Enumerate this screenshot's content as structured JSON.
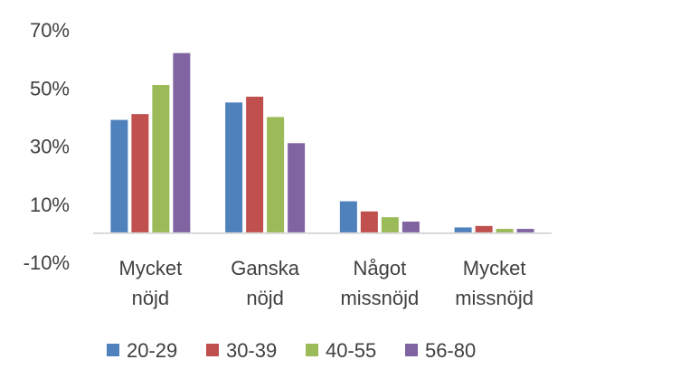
{
  "chart_data": {
    "type": "bar",
    "title": "",
    "xlabel": "",
    "ylabel": "",
    "ylim": [
      -10,
      70
    ],
    "yticks": [
      "70%",
      "50%",
      "30%",
      "10%",
      "-10%"
    ],
    "ytick_values": [
      70,
      50,
      30,
      10,
      -10
    ],
    "categories": [
      [
        "Mycket",
        "nöjd"
      ],
      [
        "Ganska",
        "nöjd"
      ],
      [
        "Något",
        "missnöjd"
      ],
      [
        "Mycket",
        "missnöjd"
      ]
    ],
    "series": [
      {
        "name": "20-29",
        "color": "#4f81bd",
        "values": [
          39,
          45,
          11,
          2
        ]
      },
      {
        "name": "30-39",
        "color": "#c0504d",
        "values": [
          41,
          47,
          7.5,
          2.5
        ]
      },
      {
        "name": "40-55",
        "color": "#9bbb59",
        "values": [
          51,
          40,
          5.5,
          1.5
        ]
      },
      {
        "name": "56-80",
        "color": "#8064a2",
        "values": [
          62,
          31,
          4,
          1.5
        ]
      }
    ],
    "grid": false,
    "legend_position": "bottom"
  }
}
